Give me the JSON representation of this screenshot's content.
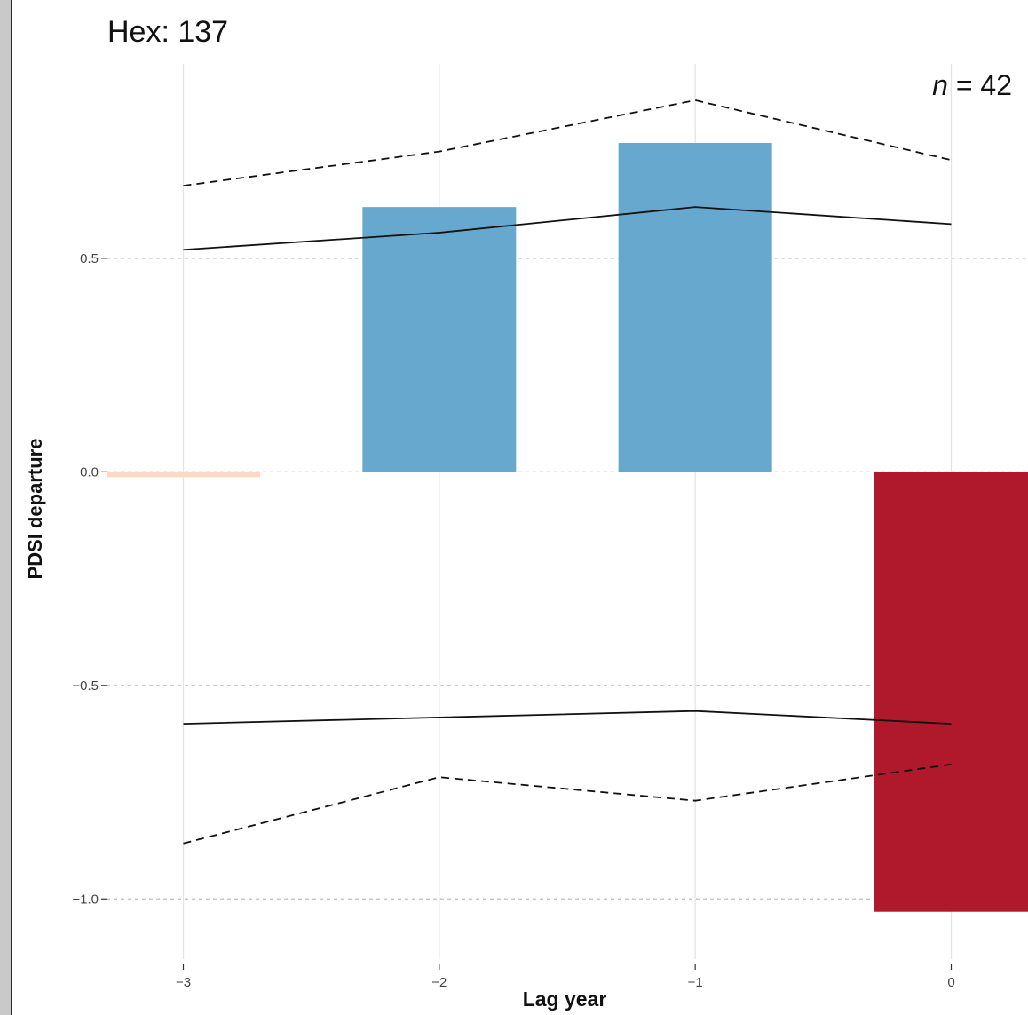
{
  "chart_data": {
    "type": "bar",
    "title": "Hex: 137",
    "annotation": {
      "italic": "n",
      "rest": " = 42"
    },
    "xlabel": "Lag year",
    "ylabel": "PDSI departure",
    "xlim": [
      -3.3,
      0.3
    ],
    "ylim": [
      -1.12,
      0.98
    ],
    "x_ticks": [
      -3,
      -2,
      -1,
      0
    ],
    "x_tick_labels": [
      "−3",
      "−2",
      "−1",
      "0"
    ],
    "y_ticks": [
      0.5,
      0.0,
      -0.5,
      -1.0
    ],
    "y_tick_labels": [
      "0.5",
      "0.0",
      "−0.5",
      "−1.0"
    ],
    "grid": {
      "vertical": "solid",
      "horizontal": "dashed"
    },
    "bars": [
      {
        "x": -3,
        "value": -0.01,
        "color": "#fdd9c3"
      },
      {
        "x": -2,
        "value": 0.62,
        "color": "#67a8ce"
      },
      {
        "x": -1,
        "value": 0.77,
        "color": "#67a8ce"
      },
      {
        "x": 0,
        "value": -1.03,
        "color": "#b0182b"
      }
    ],
    "lines": [
      {
        "style": "solid",
        "x": [
          -3,
          -2,
          -1,
          0
        ],
        "y": [
          0.52,
          0.56,
          0.62,
          0.58
        ]
      },
      {
        "style": "dashed",
        "x": [
          -3,
          -2,
          -1,
          0
        ],
        "y": [
          0.67,
          0.75,
          0.87,
          0.73
        ]
      },
      {
        "style": "solid",
        "x": [
          -3,
          -2,
          -1,
          0
        ],
        "y": [
          -0.59,
          -0.575,
          -0.56,
          -0.59
        ]
      },
      {
        "style": "dashed",
        "x": [
          -3,
          -2,
          -1,
          0
        ],
        "y": [
          -0.87,
          -0.715,
          -0.77,
          -0.685
        ]
      }
    ]
  }
}
